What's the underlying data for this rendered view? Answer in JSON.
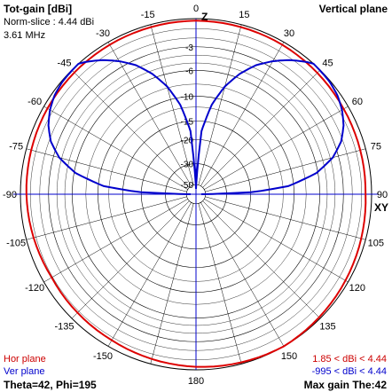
{
  "header": {
    "title": "Tot-gain [dBi]",
    "norm_slice": "Norm-slice : 4.44 dBi",
    "frequency": "3.61 MHz",
    "plane": "Vertical plane"
  },
  "footer": {
    "hor_plane_label": "Hor plane",
    "ver_plane_label": "Ver plane",
    "theta_phi": "Theta=42, Phi=195",
    "hor_range": "1.85 < dBi < 4.44",
    "ver_range": "-995 < dBi < 4.44",
    "max_gain": "Max gain The:42"
  },
  "axis_labels": {
    "top": "Z",
    "right": "XY"
  },
  "colors": {
    "grid": "#000000",
    "axis": "#0000cc",
    "hor_plane": "#dd0000",
    "ver_plane": "#0000cc",
    "text_red": "#cc0000",
    "text_blue": "#0000cc"
  },
  "chart_data": {
    "type": "polar",
    "scale": "logarithmic dB",
    "angle_ticks": [
      0,
      15,
      30,
      45,
      60,
      75,
      90,
      105,
      120,
      135,
      150,
      165,
      180,
      -165,
      -150,
      -135,
      -120,
      -105,
      -90,
      -75,
      -60,
      -45,
      -30,
      -15
    ],
    "angle_tick_labels": [
      "0",
      "15",
      "30",
      "45",
      "60",
      "75",
      "90",
      "105",
      "120",
      "135",
      "150",
      "",
      "180",
      "",
      "-150",
      "-135",
      "-120",
      "-105",
      "-90",
      "-75",
      "-60",
      "-45",
      "-30",
      "-15"
    ],
    "radial_ticks_db": [
      -3,
      -6,
      -10,
      -15,
      -20,
      -30,
      -50
    ],
    "radial_tick_labels": [
      "-3",
      "-6",
      "-10",
      "-15",
      "-20",
      "-30",
      "-50"
    ],
    "series": [
      {
        "name": "Hor plane",
        "color": "#dd0000",
        "azimuth_deg": [
          0,
          30,
          60,
          90,
          120,
          150,
          180,
          210,
          240,
          270,
          300,
          330
        ],
        "gain_db": [
          -0.2,
          -0.3,
          -0.5,
          -0.6,
          -0.3,
          0,
          -0.3,
          -0.7,
          -0.9,
          -0.6,
          -0.4,
          -0.3
        ]
      },
      {
        "name": "Ver plane",
        "color": "#0000cc",
        "theta_deg": [
          0,
          5,
          10,
          15,
          20,
          25,
          30,
          35,
          40,
          42,
          50,
          55,
          60,
          65,
          70,
          75,
          80,
          85,
          88,
          90
        ],
        "gain_db": [
          -60,
          -17.5,
          -11.3,
          -7.8,
          -5.4,
          -3.6,
          -2.3,
          -1.2,
          -0.3,
          0,
          -0.1,
          -0.3,
          -0.7,
          -1.3,
          -2.2,
          -3.7,
          -6.2,
          -11,
          -20,
          -60
        ]
      }
    ]
  }
}
